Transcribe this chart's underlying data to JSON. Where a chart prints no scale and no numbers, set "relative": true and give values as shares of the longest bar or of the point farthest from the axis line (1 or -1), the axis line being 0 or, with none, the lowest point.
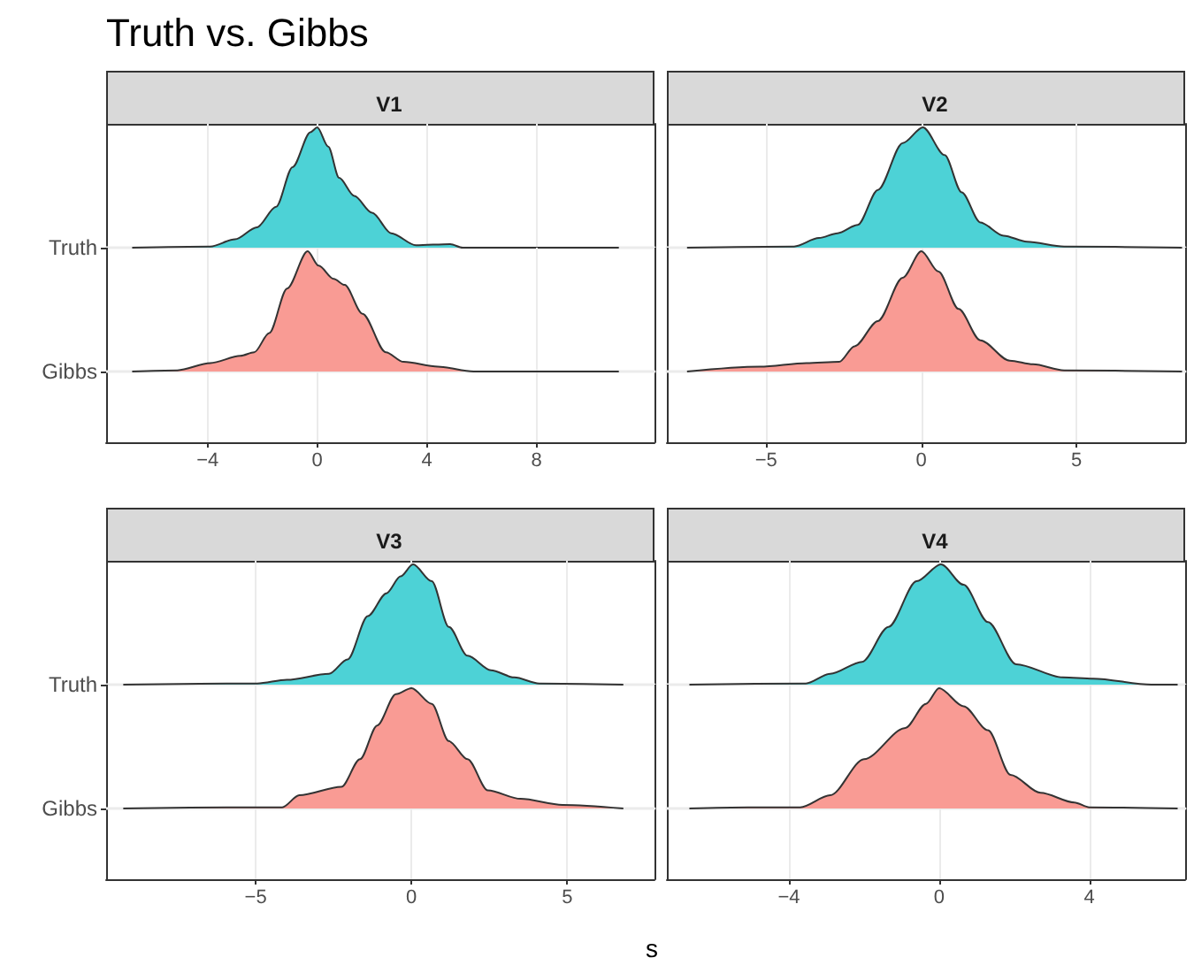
{
  "chart_data": [
    {
      "type": "area",
      "title": "V1",
      "annotations": [
        "Truth vs. Gibbs"
      ],
      "relative": true,
      "grid": true,
      "tick_labels": false,
      "xlim": [
        -7.7,
        12.3
      ],
      "xticks": [
        -4,
        0,
        4,
        8
      ],
      "series": [
        {
          "name": "Truth",
          "color": "#4dd2d6",
          "x": [
            -6.75,
            -3.9,
            -3.0,
            -2.2,
            -1.5,
            -0.9,
            -0.25,
            0,
            0.4,
            0.8,
            1.35,
            2.0,
            2.7,
            3.6,
            4.85,
            5.3,
            11.0
          ],
          "values": [
            0,
            0.01,
            0.07,
            0.17,
            0.34,
            0.67,
            0.96,
            1,
            0.84,
            0.58,
            0.43,
            0.29,
            0.12,
            0.02,
            0.03,
            0,
            0
          ]
        }
      ]
    },
    {
      "type": "area",
      "relative": true,
      "grid": true,
      "xlim": [
        -7.7,
        12.3
      ],
      "xticks": [
        -4,
        0,
        4,
        8
      ],
      "series": [
        {
          "name": "Gibbs",
          "color": "#f99b94",
          "x": [
            -6.75,
            -5.1,
            -3.9,
            -2.8,
            -2.3,
            -1.75,
            -1.1,
            -0.35,
            0.05,
            0.6,
            1.0,
            1.65,
            2.5,
            3.15,
            4.4,
            5.7,
            11.0
          ],
          "values": [
            0,
            0.01,
            0.07,
            0.13,
            0.16,
            0.32,
            0.69,
            1,
            0.88,
            0.77,
            0.72,
            0.48,
            0.16,
            0.08,
            0.04,
            0,
            0
          ]
        }
      ]
    },
    {
      "type": "area",
      "title": "V2",
      "relative": true,
      "grid": true,
      "tick_labels": false,
      "xlim": [
        -8.2,
        8.5
      ],
      "xticks": [
        -5,
        0,
        5
      ],
      "series": [
        {
          "color": "#4dd2d6",
          "x": [
            -7.55,
            -4.1,
            -3.3,
            -2.7,
            -2.05,
            -1.4,
            -0.6,
            0.05,
            0.75,
            1.3,
            1.9,
            2.65,
            3.4,
            4.6,
            8.4
          ],
          "values": [
            0,
            0.01,
            0.08,
            0.12,
            0.19,
            0.48,
            0.87,
            1,
            0.77,
            0.46,
            0.21,
            0.1,
            0.05,
            0.01,
            0
          ]
        }
      ]
    },
    {
      "type": "area",
      "relative": true,
      "grid": true,
      "tick_labels": "x",
      "xlim": [
        -8.2,
        8.5
      ],
      "xticks": [
        -5,
        0,
        5
      ],
      "series": [
        {
          "color": "#f99b94",
          "x": [
            -7.55,
            -5.2,
            -3.7,
            -2.65,
            -2.15,
            -1.4,
            -0.6,
            0,
            0.55,
            1.2,
            1.9,
            2.85,
            3.6,
            4.6,
            8.4
          ],
          "values": [
            0,
            0.04,
            0.07,
            0.08,
            0.21,
            0.42,
            0.78,
            1,
            0.83,
            0.52,
            0.26,
            0.09,
            0.06,
            0.01,
            0
          ]
        }
      ]
    },
    {
      "type": "area",
      "title": "V3",
      "relative": true,
      "grid": true,
      "tick_labels": false,
      "xlim": [
        -9.8,
        7.8
      ],
      "xticks": [
        -5,
        0,
        5
      ],
      "series": [
        {
          "name": "Truth",
          "color": "#4dd2d6",
          "x": [
            -9.25,
            -4.95,
            -4.0,
            -2.65,
            -2.05,
            -1.4,
            -0.8,
            -0.35,
            0.05,
            0.65,
            1.2,
            1.8,
            2.55,
            3.3,
            4.1,
            6.8
          ],
          "values": [
            0,
            0.01,
            0.04,
            0.09,
            0.21,
            0.57,
            0.76,
            0.9,
            1,
            0.86,
            0.48,
            0.24,
            0.12,
            0.06,
            0.01,
            0
          ]
        }
      ]
    },
    {
      "type": "area",
      "xlabel": "s",
      "relative": true,
      "grid": true,
      "xlim": [
        -9.8,
        7.8
      ],
      "xticks": [
        -5,
        0,
        5
      ],
      "series": [
        {
          "name": "Gibbs",
          "color": "#f99b94",
          "x": [
            -9.25,
            -5.5,
            -4.15,
            -3.6,
            -2.25,
            -1.65,
            -1.1,
            -0.5,
            0,
            0.65,
            1.2,
            1.8,
            2.45,
            3.5,
            4.85,
            6.8
          ],
          "values": [
            0,
            0.01,
            0.01,
            0.11,
            0.18,
            0.41,
            0.69,
            0.95,
            1,
            0.87,
            0.56,
            0.41,
            0.15,
            0.08,
            0.03,
            0
          ]
        }
      ]
    },
    {
      "type": "area",
      "title": "V4",
      "relative": true,
      "grid": true,
      "tick_labels": false,
      "xlim": [
        -7.25,
        6.55
      ],
      "xticks": [
        -4,
        0,
        4
      ],
      "series": [
        {
          "color": "#4dd2d6",
          "x": [
            -6.65,
            -3.55,
            -2.9,
            -2.05,
            -1.35,
            -0.6,
            0.05,
            0.65,
            1.3,
            2.05,
            3.3,
            4.1,
            5.65,
            6.35
          ],
          "values": [
            0,
            0.01,
            0.09,
            0.19,
            0.48,
            0.86,
            1,
            0.83,
            0.52,
            0.17,
            0.06,
            0.05,
            0,
            0
          ]
        }
      ]
    },
    {
      "type": "area",
      "relative": true,
      "grid": true,
      "tick_labels": "x",
      "xlim": [
        -7.25,
        6.55
      ],
      "xticks": [
        -4,
        0,
        4
      ],
      "series": [
        {
          "color": "#f99b94",
          "x": [
            -6.65,
            -5.1,
            -3.7,
            -2.9,
            -2.0,
            -0.9,
            -0.35,
            0,
            0.65,
            1.3,
            1.9,
            2.7,
            3.6,
            4.0,
            6.35
          ],
          "values": [
            0,
            0.01,
            0.01,
            0.11,
            0.41,
            0.67,
            0.87,
            1,
            0.85,
            0.65,
            0.28,
            0.13,
            0.05,
            0.01,
            0
          ]
        }
      ]
    }
  ]
}
